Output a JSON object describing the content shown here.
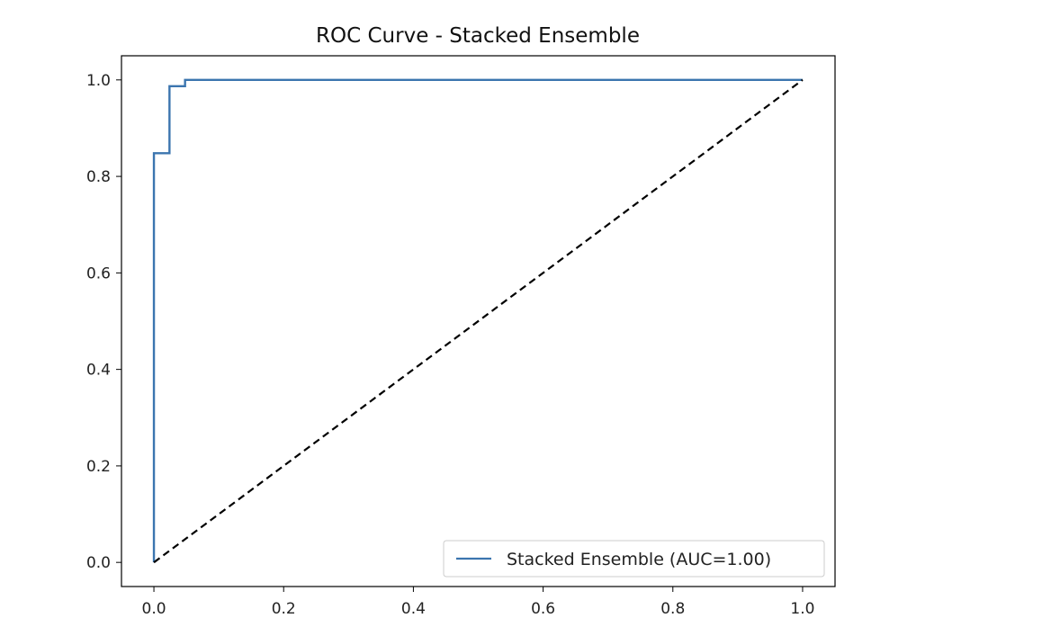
{
  "chart_data": {
    "type": "line",
    "title": "ROC Curve - Stacked Ensemble",
    "xlabel": "",
    "ylabel": "",
    "xlim": [
      -0.05,
      1.05
    ],
    "ylim": [
      -0.05,
      1.05
    ],
    "x_ticks": [
      "0.0",
      "0.2",
      "0.4",
      "0.6",
      "0.8",
      "1.0"
    ],
    "y_ticks": [
      "0.0",
      "0.2",
      "0.4",
      "0.6",
      "0.8",
      "1.0"
    ],
    "grid": false,
    "legend": {
      "position": "lower-right",
      "entries": [
        "Stacked Ensemble (AUC=1.00)"
      ]
    },
    "series": [
      {
        "name": "Stacked Ensemble (AUC=1.00)",
        "color": "#3b75af",
        "style": "solid",
        "x": [
          0.0,
          0.0,
          0.024,
          0.024,
          0.048,
          0.048,
          1.0
        ],
        "y": [
          0.0,
          0.848,
          0.848,
          0.987,
          0.987,
          1.0,
          1.0
        ]
      },
      {
        "color": "#000000",
        "style": "dashed",
        "x": [
          0.0,
          1.0
        ],
        "y": [
          0.0,
          1.0
        ]
      }
    ]
  }
}
